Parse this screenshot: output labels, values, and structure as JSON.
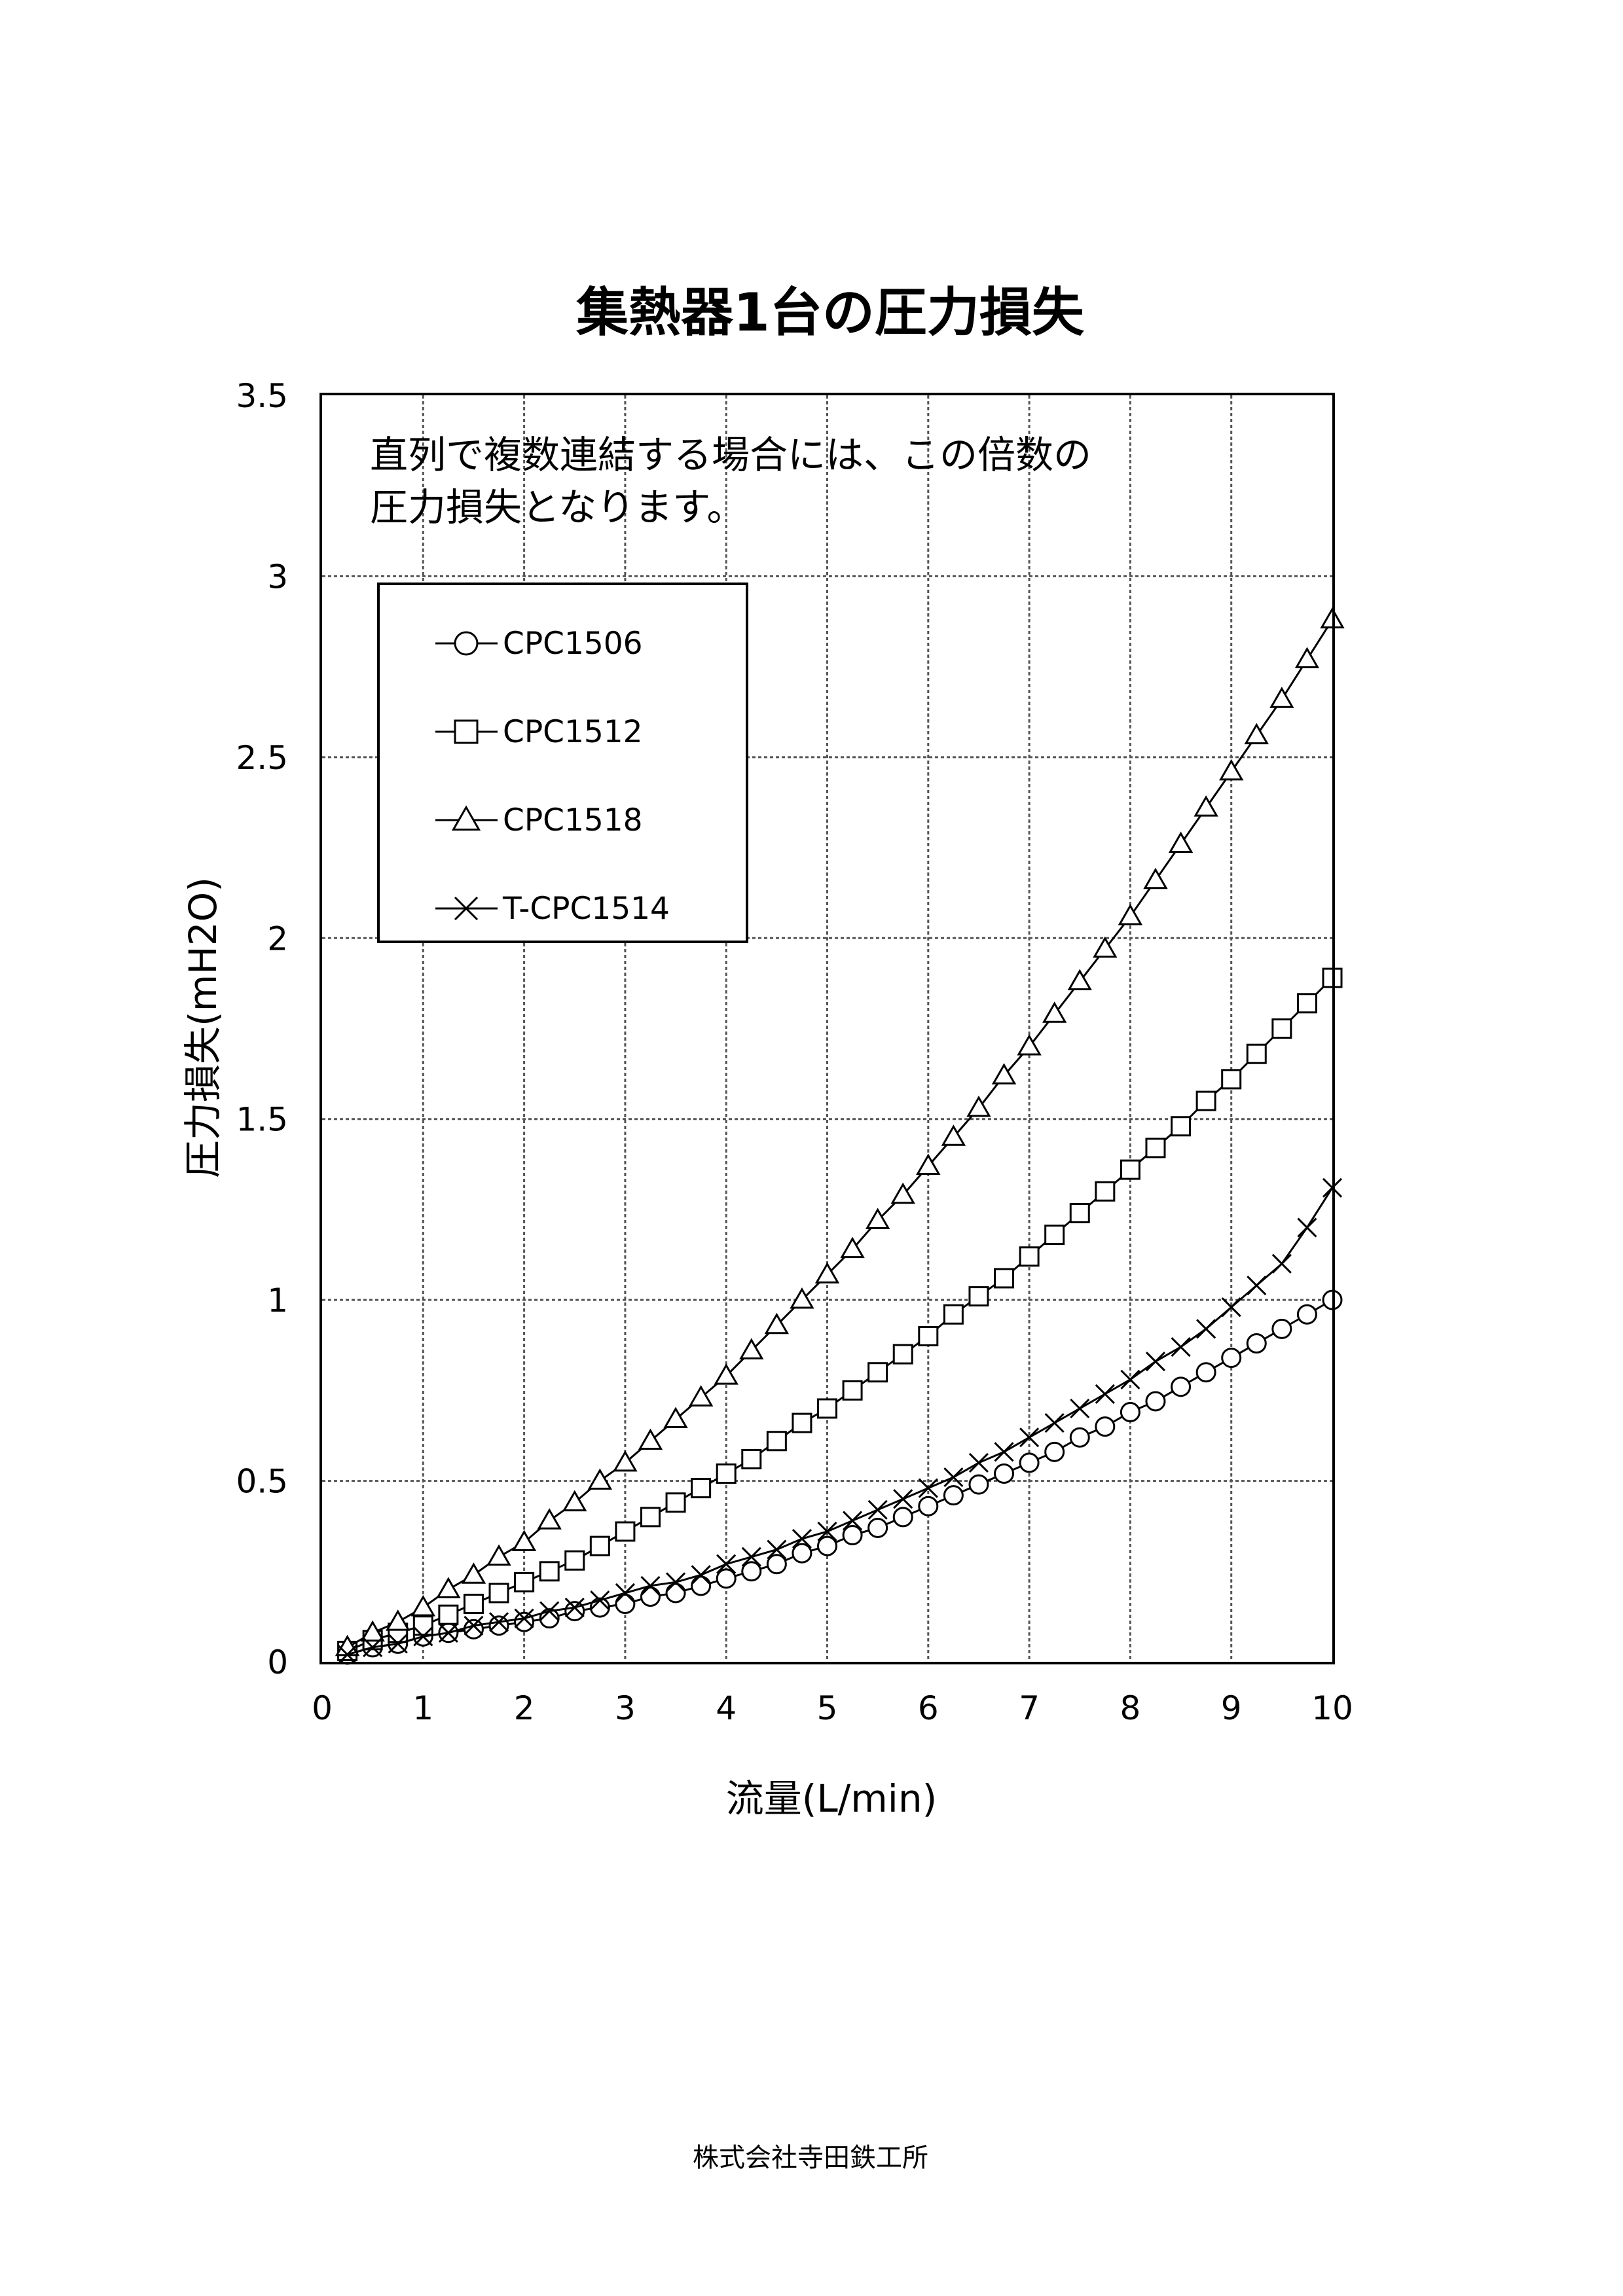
{
  "chart_data": {
    "type": "line",
    "title": "集熱器1台の圧力損失",
    "xlabel": "流量(L/min)",
    "ylabel": "圧力損失(mH2O)",
    "xlim": [
      0,
      10
    ],
    "ylim": [
      0,
      3.5
    ],
    "xticks": [
      "0",
      "1",
      "2",
      "3",
      "4",
      "5",
      "6",
      "7",
      "8",
      "9",
      "10"
    ],
    "yticks": [
      "0",
      "0.5",
      "1",
      "1.5",
      "2",
      "2.5",
      "3",
      "3.5"
    ],
    "grid": true,
    "legend_position": "top-left",
    "annotation": [
      "直列で複数連結する場合には、この倍数の",
      "圧力損失となります。"
    ],
    "series": [
      {
        "name": "CPC1506",
        "marker": "circle",
        "x": [
          0.25,
          0.5,
          0.75,
          1,
          1.25,
          1.5,
          1.75,
          2,
          2.25,
          2.5,
          2.75,
          3,
          3.25,
          3.5,
          3.75,
          4,
          4.25,
          4.5,
          4.75,
          5,
          5.25,
          5.5,
          5.75,
          6,
          6.25,
          6.5,
          6.75,
          7,
          7.25,
          7.5,
          7.75,
          8,
          8.25,
          8.5,
          8.75,
          9,
          9.25,
          9.5,
          9.75,
          10
        ],
        "values": [
          0.02,
          0.04,
          0.05,
          0.07,
          0.08,
          0.09,
          0.1,
          0.11,
          0.12,
          0.14,
          0.15,
          0.16,
          0.18,
          0.19,
          0.21,
          0.23,
          0.25,
          0.27,
          0.3,
          0.32,
          0.35,
          0.37,
          0.4,
          0.43,
          0.46,
          0.49,
          0.52,
          0.55,
          0.58,
          0.62,
          0.65,
          0.69,
          0.72,
          0.76,
          0.8,
          0.84,
          0.88,
          0.92,
          0.96,
          1.0
        ]
      },
      {
        "name": "CPC1512",
        "marker": "square",
        "x": [
          0.25,
          0.5,
          0.75,
          1,
          1.25,
          1.5,
          1.75,
          2,
          2.25,
          2.5,
          2.75,
          3,
          3.25,
          3.5,
          3.75,
          4,
          4.25,
          4.5,
          4.75,
          5,
          5.25,
          5.5,
          5.75,
          6,
          6.25,
          6.5,
          6.75,
          7,
          7.25,
          7.5,
          7.75,
          8,
          8.25,
          8.5,
          8.75,
          9,
          9.25,
          9.5,
          9.75,
          10
        ],
        "values": [
          0.03,
          0.06,
          0.08,
          0.1,
          0.13,
          0.16,
          0.19,
          0.22,
          0.25,
          0.28,
          0.32,
          0.36,
          0.4,
          0.44,
          0.48,
          0.52,
          0.56,
          0.61,
          0.66,
          0.7,
          0.75,
          0.8,
          0.85,
          0.9,
          0.96,
          1.01,
          1.06,
          1.12,
          1.18,
          1.24,
          1.3,
          1.36,
          1.42,
          1.48,
          1.55,
          1.61,
          1.68,
          1.75,
          1.82,
          1.89
        ]
      },
      {
        "name": "CPC1518",
        "marker": "triangle",
        "x": [
          0.25,
          0.5,
          0.75,
          1,
          1.25,
          1.5,
          1.75,
          2,
          2.25,
          2.5,
          2.75,
          3,
          3.25,
          3.5,
          3.75,
          4,
          4.25,
          4.5,
          4.75,
          5,
          5.25,
          5.5,
          5.75,
          6,
          6.25,
          6.5,
          6.75,
          7,
          7.25,
          7.5,
          7.75,
          8,
          8.25,
          8.5,
          8.75,
          9,
          9.25,
          9.5,
          9.75,
          10
        ],
        "values": [
          0.04,
          0.08,
          0.11,
          0.15,
          0.2,
          0.24,
          0.29,
          0.33,
          0.39,
          0.44,
          0.5,
          0.55,
          0.61,
          0.67,
          0.73,
          0.79,
          0.86,
          0.93,
          1.0,
          1.07,
          1.14,
          1.22,
          1.29,
          1.37,
          1.45,
          1.53,
          1.62,
          1.7,
          1.79,
          1.88,
          1.97,
          2.06,
          2.16,
          2.26,
          2.36,
          2.46,
          2.56,
          2.66,
          2.77,
          2.88
        ]
      },
      {
        "name": "T-CPC1514",
        "marker": "x",
        "x": [
          0.25,
          0.5,
          0.75,
          1,
          1.25,
          1.5,
          1.75,
          2,
          2.25,
          2.5,
          2.75,
          3,
          3.25,
          3.5,
          3.75,
          4,
          4.25,
          4.5,
          4.75,
          5,
          5.25,
          5.5,
          5.75,
          6,
          6.25,
          6.5,
          6.75,
          7,
          7.25,
          7.5,
          7.75,
          8,
          8.25,
          8.5,
          8.75,
          9,
          9.25,
          9.5,
          9.75,
          10
        ],
        "values": [
          0.02,
          0.04,
          0.05,
          0.07,
          0.08,
          0.1,
          0.11,
          0.12,
          0.14,
          0.15,
          0.17,
          0.19,
          0.21,
          0.22,
          0.24,
          0.27,
          0.29,
          0.31,
          0.34,
          0.36,
          0.39,
          0.42,
          0.45,
          0.48,
          0.51,
          0.55,
          0.58,
          0.62,
          0.66,
          0.7,
          0.74,
          0.78,
          0.83,
          0.87,
          0.92,
          0.98,
          1.04,
          1.1,
          1.2,
          1.31
        ]
      }
    ]
  },
  "footer": "株式会社寺田鉄工所"
}
